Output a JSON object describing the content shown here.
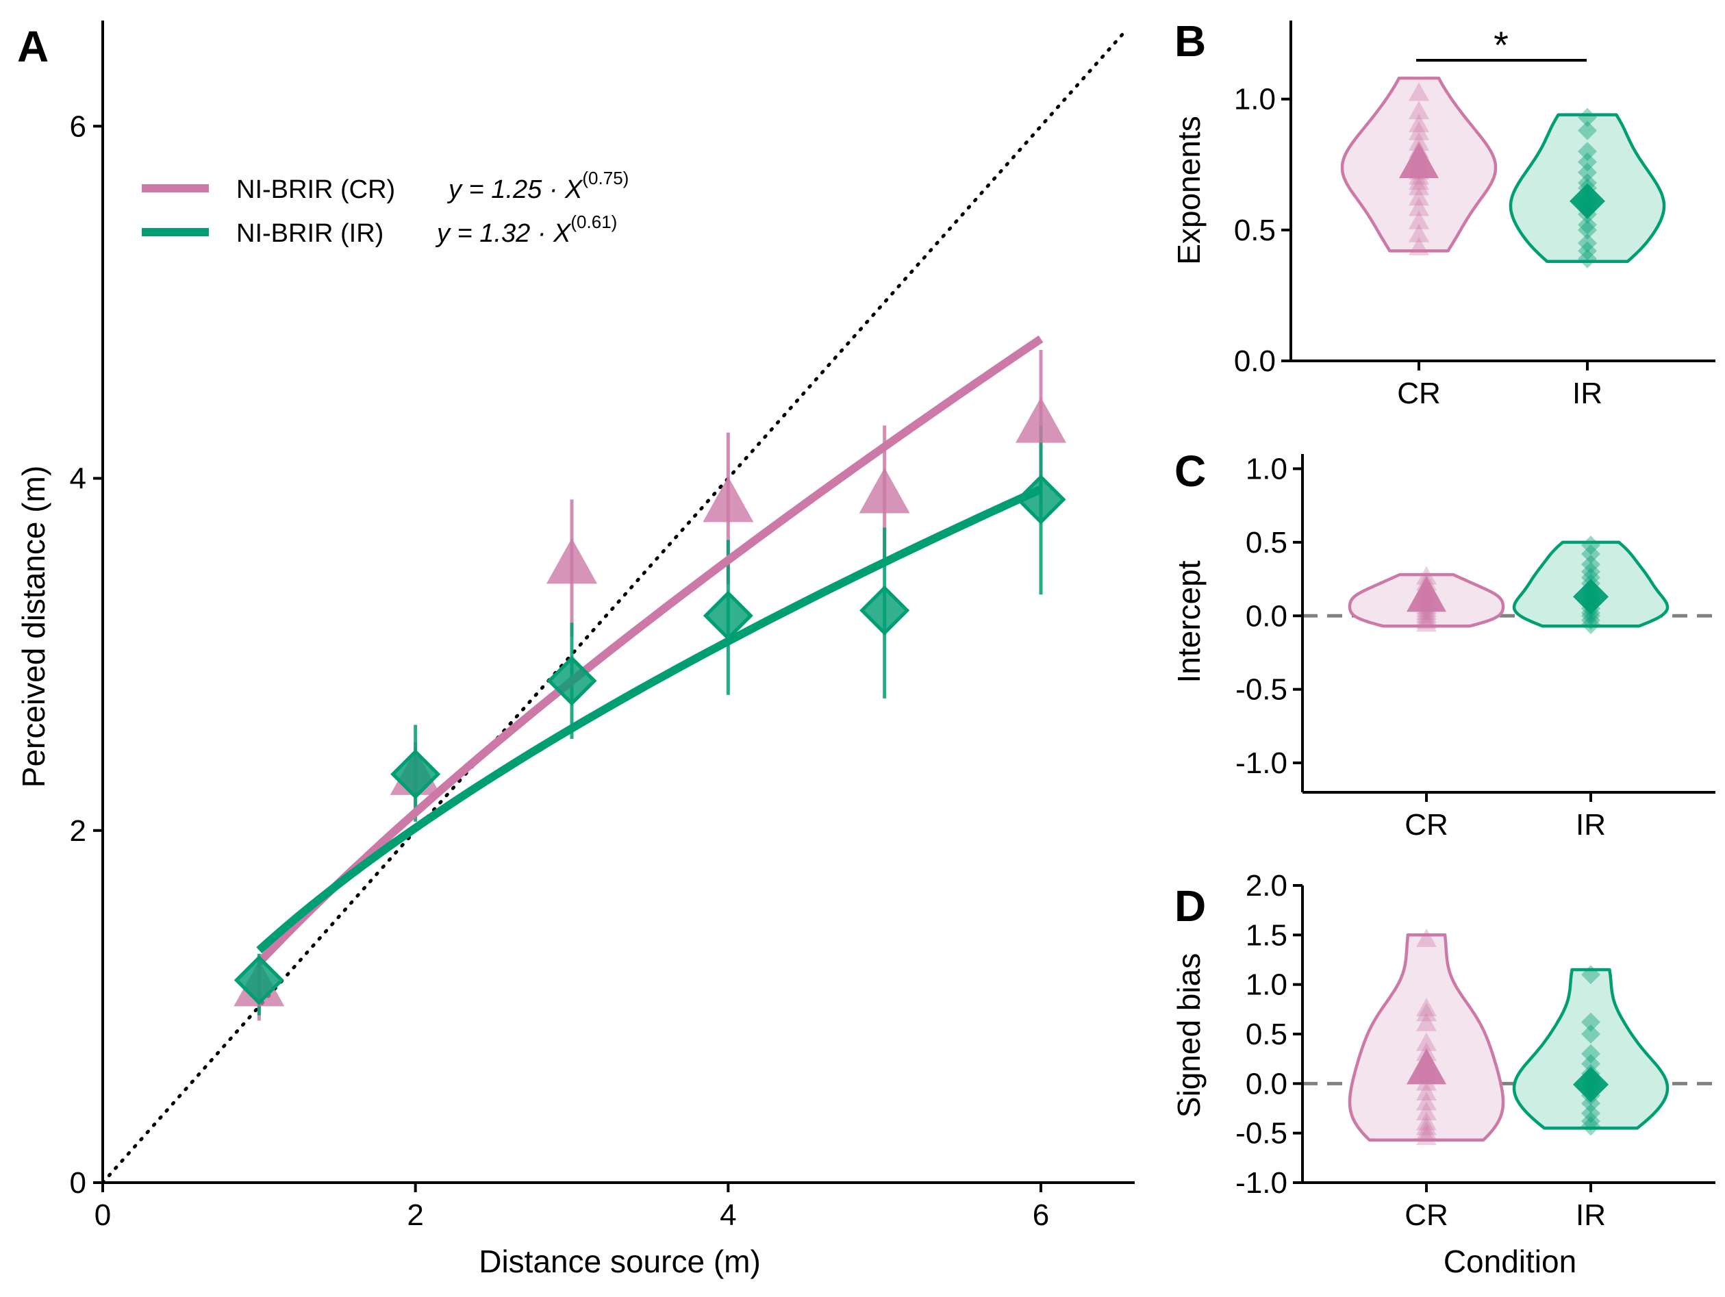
{
  "colors": {
    "cr": "#cc79a7",
    "ir": "#009e73",
    "cr_fill": "#f3e4ee",
    "ir_fill": "#cdeee2"
  },
  "chart_data": [
    {
      "id": "A",
      "panel_label": "A",
      "type": "scatter",
      "xlabel": "Distance source (m)",
      "ylabel": "Perceived distance (m)",
      "xlim": [
        0,
        6.6
      ],
      "ylim": [
        0,
        6.6
      ],
      "xticks": [
        0,
        2,
        4,
        6
      ],
      "yticks": [
        0,
        2,
        4,
        6
      ],
      "reference_line": "y = x (dotted)",
      "legend_position": "top-left",
      "legend": [
        {
          "name": "NI-BRIR (CR)",
          "equation": "y = 1.25 · X",
          "exponent": "(0.75)"
        },
        {
          "name": "NI-BRIR (IR)",
          "equation": "y = 1.32 · X",
          "exponent": "(0.61)"
        }
      ],
      "series": [
        {
          "name": "NI-BRIR (CR)",
          "color": "#cc79a7",
          "marker": "triangle",
          "x": [
            1,
            2,
            3,
            4,
            5,
            6
          ],
          "y": [
            1.1,
            2.3,
            3.5,
            3.85,
            3.9,
            4.3
          ],
          "ci_low": [
            0.92,
            2.08,
            3.1,
            3.4,
            3.55,
            3.85
          ],
          "ci_high": [
            1.28,
            2.5,
            3.88,
            4.26,
            4.3,
            4.73
          ],
          "fit": {
            "a": 1.25,
            "b": 0.75,
            "x_range": [
              1,
              6
            ]
          }
        },
        {
          "name": "NI-BRIR (IR)",
          "color": "#009e73",
          "marker": "diamond",
          "x": [
            1,
            2,
            3,
            4,
            5,
            6
          ],
          "y": [
            1.15,
            2.32,
            2.85,
            3.22,
            3.25,
            3.88
          ],
          "ci_low": [
            0.95,
            2.05,
            2.52,
            2.77,
            2.75,
            3.34
          ],
          "ci_high": [
            1.3,
            2.6,
            3.18,
            3.65,
            3.72,
            4.3
          ],
          "fit": {
            "a": 1.32,
            "b": 0.61,
            "x_range": [
              1,
              6
            ]
          }
        }
      ]
    },
    {
      "id": "B",
      "panel_label": "B",
      "type": "violin",
      "ylabel": "Exponents",
      "categories": [
        "CR",
        "IR"
      ],
      "ylim": [
        0,
        1.3
      ],
      "yticks": [
        0,
        0.5,
        1
      ],
      "ytick_labels": [
        "0.0",
        "0.5",
        "1.0"
      ],
      "significance": {
        "from": "CR",
        "to": "IR",
        "label": "*"
      },
      "series": [
        {
          "name": "CR",
          "color": "#cc79a7",
          "marker": "triangle",
          "mean": 0.75,
          "range": [
            0.42,
            1.08
          ],
          "points": [
            0.43,
            0.48,
            0.53,
            0.58,
            0.62,
            0.66,
            0.68,
            0.7,
            0.72,
            0.74,
            0.76,
            0.78,
            0.8,
            0.83,
            0.87,
            0.9,
            0.95,
            1.02
          ]
        },
        {
          "name": "IR",
          "color": "#009e73",
          "marker": "diamond",
          "mean": 0.61,
          "range": [
            0.38,
            0.94
          ],
          "points": [
            0.39,
            0.42,
            0.45,
            0.5,
            0.52,
            0.56,
            0.58,
            0.6,
            0.62,
            0.66,
            0.68,
            0.72,
            0.76,
            0.8,
            0.88,
            0.93
          ]
        }
      ]
    },
    {
      "id": "C",
      "panel_label": "C",
      "type": "violin",
      "ylabel": "Intercept",
      "categories": [
        "CR",
        "IR"
      ],
      "ylim": [
        -1.2,
        1.1
      ],
      "yticks": [
        -1,
        -0.5,
        0,
        0.5,
        1
      ],
      "ytick_labels": [
        "-1.0",
        "-0.5",
        "0.0",
        "0.5",
        "1.0"
      ],
      "reference_line": "y = 0 (dashed)",
      "series": [
        {
          "name": "CR",
          "color": "#cc79a7",
          "marker": "triangle",
          "mean": 0.12,
          "range": [
            -0.07,
            0.28
          ],
          "points": [
            -0.06,
            -0.04,
            -0.02,
            0.0,
            0.02,
            0.04,
            0.06,
            0.08,
            0.1,
            0.12,
            0.14,
            0.16,
            0.18,
            0.22,
            0.26
          ]
        },
        {
          "name": "IR",
          "color": "#009e73",
          "marker": "diamond",
          "mean": 0.13,
          "range": [
            -0.07,
            0.5
          ],
          "points": [
            -0.06,
            -0.03,
            0.0,
            0.02,
            0.05,
            0.08,
            0.1,
            0.14,
            0.18,
            0.22,
            0.26,
            0.3,
            0.35,
            0.42,
            0.48
          ]
        }
      ]
    },
    {
      "id": "D",
      "panel_label": "D",
      "type": "violin",
      "ylabel": "Signed bias",
      "xlabel": "Condition",
      "categories": [
        "CR",
        "IR"
      ],
      "ylim": [
        -1,
        2
      ],
      "yticks": [
        -1,
        -0.5,
        0,
        0.5,
        1,
        1.5,
        2
      ],
      "ytick_labels": [
        "-1.0",
        "-0.5",
        "0.0",
        "0.5",
        "1.0",
        "1.5",
        "2.0"
      ],
      "reference_line": "y = 0 (dashed)",
      "series": [
        {
          "name": "CR",
          "color": "#cc79a7",
          "marker": "triangle",
          "mean": 0.13,
          "range": [
            -0.57,
            1.5
          ],
          "points": [
            -0.55,
            -0.5,
            -0.45,
            -0.4,
            -0.3,
            -0.2,
            -0.1,
            0.0,
            0.1,
            0.2,
            0.3,
            0.4,
            0.6,
            0.7,
            0.75,
            1.45
          ]
        },
        {
          "name": "IR",
          "color": "#009e73",
          "marker": "diamond",
          "mean": -0.01,
          "range": [
            -0.45,
            1.15
          ],
          "points": [
            -0.43,
            -0.38,
            -0.3,
            -0.2,
            -0.12,
            -0.05,
            0.0,
            0.05,
            0.1,
            0.2,
            0.3,
            0.5,
            0.62,
            1.1
          ]
        }
      ]
    }
  ]
}
